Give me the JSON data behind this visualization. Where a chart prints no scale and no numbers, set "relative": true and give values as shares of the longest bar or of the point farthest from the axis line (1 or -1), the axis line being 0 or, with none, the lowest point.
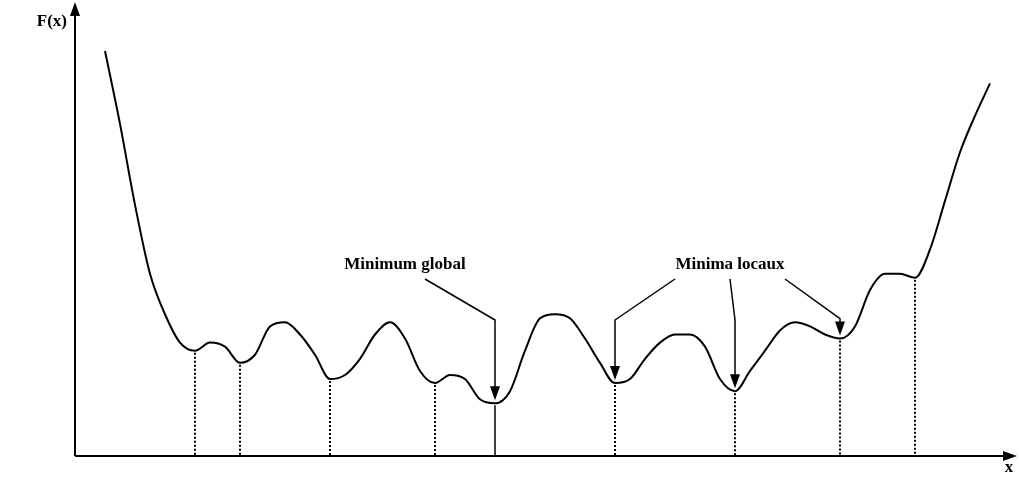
{
  "chart_data": {
    "type": "line",
    "relative": true,
    "xlabel": "x",
    "ylabel": "F(x)",
    "annotations": [
      "Minimum global",
      "Minima locaux"
    ],
    "categories": [
      null,
      null,
      null,
      null,
      null,
      null,
      null,
      null,
      null,
      null,
      null,
      null,
      null,
      null,
      null,
      null,
      null,
      null,
      null,
      null,
      null,
      null,
      null,
      null,
      null,
      null,
      null,
      null,
      null,
      null,
      null,
      null,
      null,
      null,
      null,
      null,
      null,
      null,
      null,
      null,
      null,
      null,
      null,
      null,
      null,
      null,
      null,
      null,
      null,
      null,
      null,
      null,
      null,
      null,
      null,
      null,
      null,
      null,
      null,
      null,
      null,
      null,
      null
    ],
    "series": [
      {
        "color": "#000000",
        "values": [
          null,
          null,
          1.0,
          0.82,
          0.62,
          0.45,
          0.35,
          0.28,
          0.26,
          0.28,
          0.27,
          0.23,
          0.25,
          0.32,
          0.33,
          0.3,
          0.25,
          0.19,
          0.2,
          0.24,
          0.3,
          0.33,
          0.29,
          0.21,
          0.18,
          0.2,
          0.19,
          0.14,
          0.13,
          0.16,
          0.26,
          0.34,
          0.35,
          0.34,
          0.29,
          0.23,
          0.18,
          0.19,
          0.24,
          0.28,
          0.3,
          0.3,
          0.27,
          0.19,
          0.16,
          0.21,
          0.26,
          0.31,
          0.33,
          0.32,
          0.3,
          0.29,
          0.32,
          0.41,
          0.45,
          0.45,
          0.44,
          0.51,
          0.63,
          0.75,
          0.84,
          0.92,
          null
        ]
      }
    ]
  }
}
